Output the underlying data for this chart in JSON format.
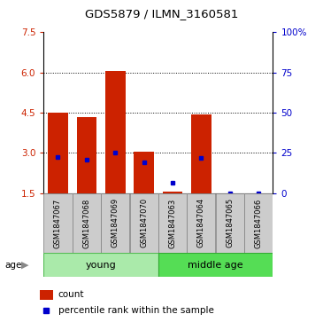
{
  "title": "GDS5879 / ILMN_3160581",
  "samples": [
    "GSM1847067",
    "GSM1847068",
    "GSM1847069",
    "GSM1847070",
    "GSM1847063",
    "GSM1847064",
    "GSM1847065",
    "GSM1847066"
  ],
  "bar_values": [
    4.5,
    4.35,
    6.05,
    3.05,
    1.55,
    4.45,
    1.5,
    1.5
  ],
  "bar_bottom": 1.5,
  "percentile_values": [
    2.85,
    2.75,
    3.0,
    2.65,
    1.9,
    2.8,
    1.5,
    1.5
  ],
  "bar_color": "#cc2200",
  "percentile_color": "#0000cc",
  "ylim": [
    1.5,
    7.5
  ],
  "yticks_left": [
    1.5,
    3.0,
    4.5,
    6.0,
    7.5
  ],
  "yticks_right": [
    0,
    25,
    50,
    75,
    100
  ],
  "right_axis_color": "#0000cc",
  "groups": [
    {
      "label": "young",
      "indices": [
        0,
        1,
        2,
        3
      ],
      "color": "#aaeaaa",
      "edgecolor": "#55bb55"
    },
    {
      "label": "middle age",
      "indices": [
        4,
        5,
        6,
        7
      ],
      "color": "#55dd55",
      "edgecolor": "#33aa33"
    }
  ],
  "age_label": "age",
  "legend_count_label": "count",
  "legend_percentile_label": "percentile rank within the sample",
  "background_color": "#ffffff",
  "tick_label_color_left": "#cc2200",
  "bar_width": 0.7,
  "sample_box_color": "#cccccc",
  "sample_box_edge": "#888888",
  "grid_dotted_ticks": [
    3.0,
    4.5,
    6.0
  ]
}
